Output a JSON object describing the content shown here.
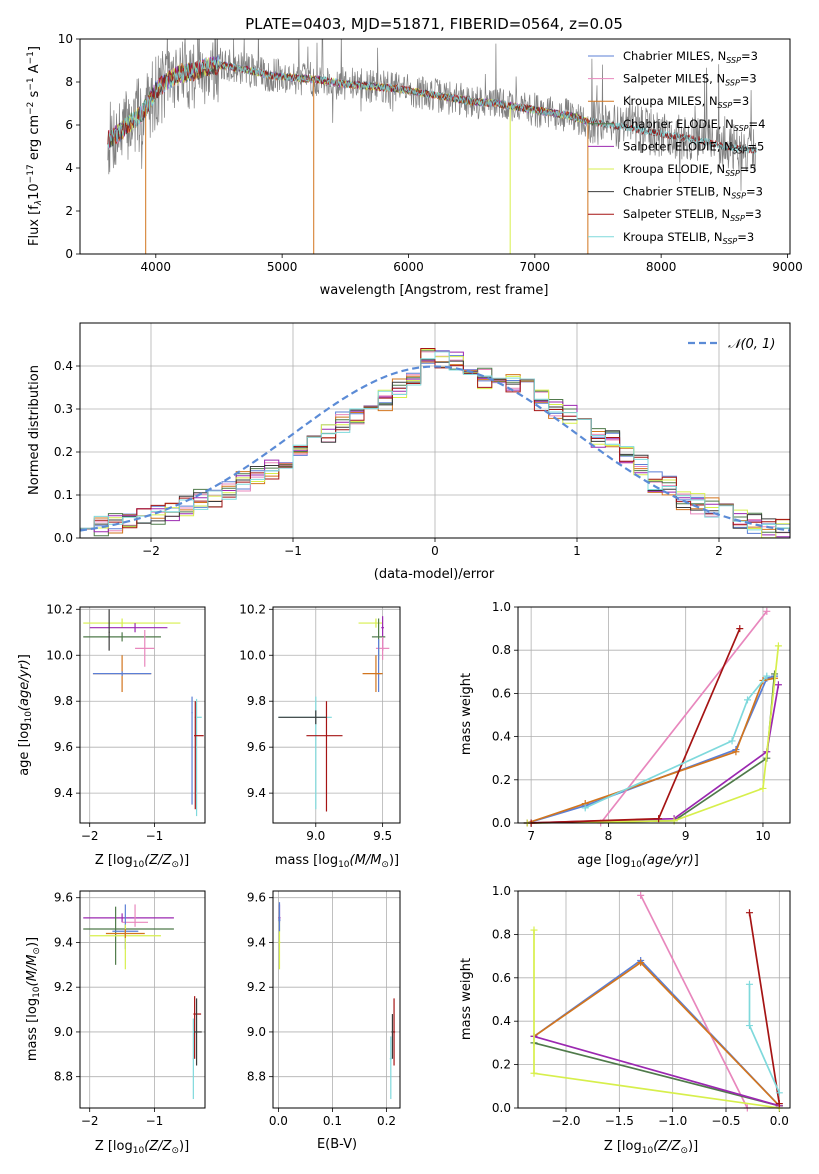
{
  "colors": {
    "Chabrier MILES": "#5b7fd6",
    "Salpeter MILES": "#e887bd",
    "Kroupa MILES": "#d2751e",
    "Chabrier ELODIE": "#4f7a4a",
    "Salpeter ELODIE": "#9b28b0",
    "Kroupa ELODIE": "#d7ef4c",
    "Chabrier STELIB": "#3b3b3b",
    "Salpeter STELIB": "#a51414",
    "Kroupa STELIB": "#7fd9dc",
    "observed": "#808080",
    "normal_curve": "#5b8bd6"
  },
  "chart_data": [
    {
      "id": "spectrum",
      "type": "line",
      "title": "PLATE=0403, MJD=51871, FIBERID=0564, z=0.05",
      "xlabel": "wavelength [Angstrom, rest frame]",
      "ylabel": "Flux [f",
      "ylabel_sub": "λ",
      "ylabel_rest": "10",
      "ylabel_exp1": "−17",
      "ylabel_mid": " erg cm",
      "ylabel_exp2": "−2",
      "ylabel_mid2": " s",
      "ylabel_exp3": "−1",
      "ylabel_mid3": " A",
      "ylabel_exp4": "−1",
      "ylabel_end": "]",
      "xlim": [
        3400,
        9020
      ],
      "ylim": [
        0,
        10
      ],
      "xticks": [
        "4000",
        "5000",
        "6000",
        "7000",
        "8000",
        "9000"
      ],
      "yticks": [
        "0",
        "2",
        "4",
        "6",
        "8",
        "10"
      ],
      "legend_position": "top-right",
      "legend": [
        {
          "name": "Chabrier MILES",
          "nssp": "3"
        },
        {
          "name": "Salpeter MILES",
          "nssp": "3"
        },
        {
          "name": "Kroupa MILES",
          "nssp": "3"
        },
        {
          "name": "Chabrier ELODIE",
          "nssp": "4"
        },
        {
          "name": "Salpeter ELODIE",
          "nssp": "5"
        },
        {
          "name": "Kroupa ELODIE",
          "nssp": "5"
        },
        {
          "name": "Chabrier STELIB",
          "nssp": "3"
        },
        {
          "name": "Salpeter STELIB",
          "nssp": "3"
        },
        {
          "name": "Kroupa STELIB",
          "nssp": "3"
        }
      ],
      "legend_nssp_label": "N",
      "legend_nssp_sub": "SSP",
      "continuum": {
        "x": [
          3620,
          3700,
          3800,
          3900,
          4000,
          4100,
          4200,
          4300,
          4400,
          4500,
          4700,
          4900,
          5100,
          5300,
          5500,
          5700,
          5900,
          6100,
          6300,
          6500,
          6700,
          6900,
          7100,
          7300,
          7400,
          7500,
          7700,
          7900,
          8100,
          8300,
          8500,
          8750
        ],
        "y": [
          5.3,
          5.6,
          6.1,
          6.6,
          7.6,
          8.1,
          8.4,
          8.5,
          8.7,
          8.8,
          8.6,
          8.3,
          8.2,
          8.1,
          7.9,
          7.8,
          7.7,
          7.5,
          7.3,
          7.1,
          7.0,
          6.8,
          6.6,
          6.4,
          6.2,
          6.1,
          5.9,
          5.7,
          5.5,
          5.3,
          5.0,
          4.8
        ]
      },
      "model_end_wavelength": 7420,
      "stelib_end_wavelength": 8760
    },
    {
      "id": "residuals",
      "type": "bar",
      "xlabel": "(data-model)/error",
      "ylabel": "Normed distribution",
      "xlim": [
        -2.5,
        2.5
      ],
      "ylim": [
        0,
        0.5
      ],
      "xticks": [
        "−2",
        "−1",
        "0",
        "1",
        "2"
      ],
      "yticks": [
        "0.0",
        "0.1",
        "0.2",
        "0.3",
        "0.4"
      ],
      "legend_position": "top-right",
      "legend_label": "𝒩(0, 1)",
      "bin_width": 0.1,
      "bins_start": -2.5,
      "mean_hist": [
        0.028,
        0.029,
        0.035,
        0.042,
        0.044,
        0.052,
        0.062,
        0.075,
        0.09,
        0.095,
        0.11,
        0.13,
        0.148,
        0.16,
        0.175,
        0.2,
        0.23,
        0.245,
        0.27,
        0.28,
        0.29,
        0.32,
        0.35,
        0.37,
        0.42,
        0.42,
        0.41,
        0.38,
        0.37,
        0.37,
        0.36,
        0.36,
        0.32,
        0.3,
        0.29,
        0.28,
        0.23,
        0.23,
        0.19,
        0.17,
        0.13,
        0.12,
        0.09,
        0.08,
        0.07,
        0.06,
        0.04,
        0.035,
        0.025,
        0.02
      ]
    },
    {
      "id": "age-vs-z",
      "type": "scatter",
      "xlabel": "Z [log",
      "xlabel_sub": "10",
      "xlabel_math": "(Z/Z",
      "xlabel_sun": "⊙",
      "xlabel_end": ")]",
      "ylabel": "age  [log",
      "ylabel_sub": "10",
      "ylabel_math": "(age/yr)",
      "ylabel_end": "]",
      "xlim": [
        -2.15,
        -0.22
      ],
      "ylim": [
        9.27,
        10.21
      ],
      "xticks": [
        "−2",
        "−1"
      ],
      "yticks": [
        "9.4",
        "9.6",
        "9.8",
        "10.0",
        "10.2"
      ]
    },
    {
      "id": "age-vs-mass",
      "type": "scatter",
      "xlabel": "mass [log",
      "xlabel_sub": "10",
      "xlabel_math": "(M/M",
      "xlabel_sun": "⊙",
      "xlabel_end": ")]",
      "xlim": [
        8.68,
        9.63
      ],
      "ylim": [
        9.27,
        10.21
      ],
      "xticks": [
        "9.0",
        "9.5"
      ],
      "yticks": [
        "9.4",
        "9.6",
        "9.8",
        "10.0",
        "10.2"
      ]
    },
    {
      "id": "weight-vs-age",
      "type": "line",
      "xlabel": "age  [log",
      "xlabel_sub": "10",
      "xlabel_math": "(age/yr)",
      "xlabel_end": "]",
      "ylabel": "mass weight",
      "xlim": [
        6.83,
        10.35
      ],
      "ylim": [
        0,
        1
      ],
      "xticks": [
        "7",
        "8",
        "9",
        "10"
      ],
      "yticks": [
        "0.0",
        "0.2",
        "0.4",
        "0.6",
        "0.8",
        "1.0"
      ],
      "series": [
        {
          "model": "Chabrier MILES",
          "x": [
            6.95,
            7.7,
            9.65,
            10.05,
            10.15
          ],
          "y": [
            0.0,
            0.08,
            0.34,
            0.67,
            0.68
          ]
        },
        {
          "model": "Salpeter MILES",
          "x": [
            7.9,
            10.05
          ],
          "y": [
            0.0,
            0.98
          ]
        },
        {
          "model": "Kroupa MILES",
          "x": [
            6.95,
            7.7,
            9.65,
            10.0,
            10.15
          ],
          "y": [
            0.0,
            0.09,
            0.33,
            0.66,
            0.67
          ]
        },
        {
          "model": "Chabrier ELODIE",
          "x": [
            6.95,
            8.85,
            10.05,
            10.15
          ],
          "y": [
            0.0,
            0.01,
            0.3,
            0.69
          ]
        },
        {
          "model": "Salpeter ELODIE",
          "x": [
            6.95,
            8.85,
            10.05,
            10.2
          ],
          "y": [
            0.0,
            0.02,
            0.33,
            0.64
          ]
        },
        {
          "model": "Kroupa ELODIE",
          "x": [
            6.95,
            8.85,
            10.0,
            10.2
          ],
          "y": [
            0.0,
            0.01,
            0.16,
            0.82
          ]
        },
        {
          "model": "Salpeter STELIB",
          "x": [
            7.0,
            8.65,
            9.7
          ],
          "y": [
            0.0,
            0.02,
            0.9
          ]
        },
        {
          "model": "Kroupa STELIB",
          "x": [
            7.7,
            9.6,
            9.8,
            10.05
          ],
          "y": [
            0.07,
            0.38,
            0.57,
            0.68
          ]
        }
      ]
    },
    {
      "id": "mass-vs-z",
      "type": "scatter",
      "xlabel": "Z [log",
      "xlabel_sub": "10",
      "xlabel_math": "(Z/Z",
      "xlabel_sun": "⊙",
      "xlabel_end": ")]",
      "ylabel": "mass [log",
      "ylabel_sub": "10",
      "ylabel_math": "(M/M",
      "ylabel_sun": "⊙",
      "ylabel_end": ")]",
      "xlim": [
        -2.15,
        -0.22
      ],
      "ylim": [
        8.66,
        9.63
      ],
      "xticks": [
        "−2",
        "−1"
      ],
      "yticks": [
        "8.8",
        "9.0",
        "9.2",
        "9.4",
        "9.6"
      ]
    },
    {
      "id": "mass-vs-ebv",
      "type": "scatter",
      "xlabel": "E(B-V)",
      "xlim": [
        -0.01,
        0.225
      ],
      "ylim": [
        8.66,
        9.63
      ],
      "xticks": [
        "0.0",
        "0.1",
        "0.2"
      ],
      "yticks": [
        "8.8",
        "9.0",
        "9.2",
        "9.4",
        "9.6"
      ]
    },
    {
      "id": "weight-vs-z",
      "type": "line",
      "xlabel": "Z [log",
      "xlabel_sub": "10",
      "xlabel_math": "(Z/Z",
      "xlabel_sun": "⊙",
      "xlabel_end": ")]",
      "ylabel": "mass weight",
      "xlim": [
        -2.45,
        0.1
      ],
      "ylim": [
        0,
        1
      ],
      "xticks": [
        "−2.0",
        "−1.5",
        "−1.0",
        "−0.5",
        "0.0"
      ],
      "yticks": [
        "0.0",
        "0.2",
        "0.4",
        "0.6",
        "0.8",
        "1.0"
      ],
      "series": [
        {
          "model": "Chabrier MILES",
          "x": [
            -2.3,
            -1.3,
            0.0
          ],
          "y": [
            0.33,
            0.68,
            0.01
          ]
        },
        {
          "model": "Salpeter MILES",
          "x": [
            -1.3,
            -0.3
          ],
          "y": [
            0.98,
            0.0
          ]
        },
        {
          "model": "Kroupa MILES",
          "x": [
            -2.3,
            -1.3,
            0.0
          ],
          "y": [
            0.33,
            0.67,
            0.01
          ]
        },
        {
          "model": "Chabrier ELODIE",
          "x": [
            -2.3,
            0.0
          ],
          "y": [
            0.3,
            0.01
          ]
        },
        {
          "model": "Salpeter ELODIE",
          "x": [
            -2.3,
            0.0
          ],
          "y": [
            0.33,
            0.01
          ]
        },
        {
          "model": "Kroupa ELODIE",
          "x": [
            -2.3,
            -2.3,
            0.0
          ],
          "y": [
            0.82,
            0.16,
            0.0
          ]
        },
        {
          "model": "Salpeter STELIB",
          "x": [
            -0.28,
            0.0
          ],
          "y": [
            0.9,
            0.02
          ]
        },
        {
          "model": "Kroupa STELIB",
          "x": [
            -0.28,
            -0.28,
            0.0
          ],
          "y": [
            0.57,
            0.38,
            0.07
          ]
        }
      ]
    }
  ]
}
